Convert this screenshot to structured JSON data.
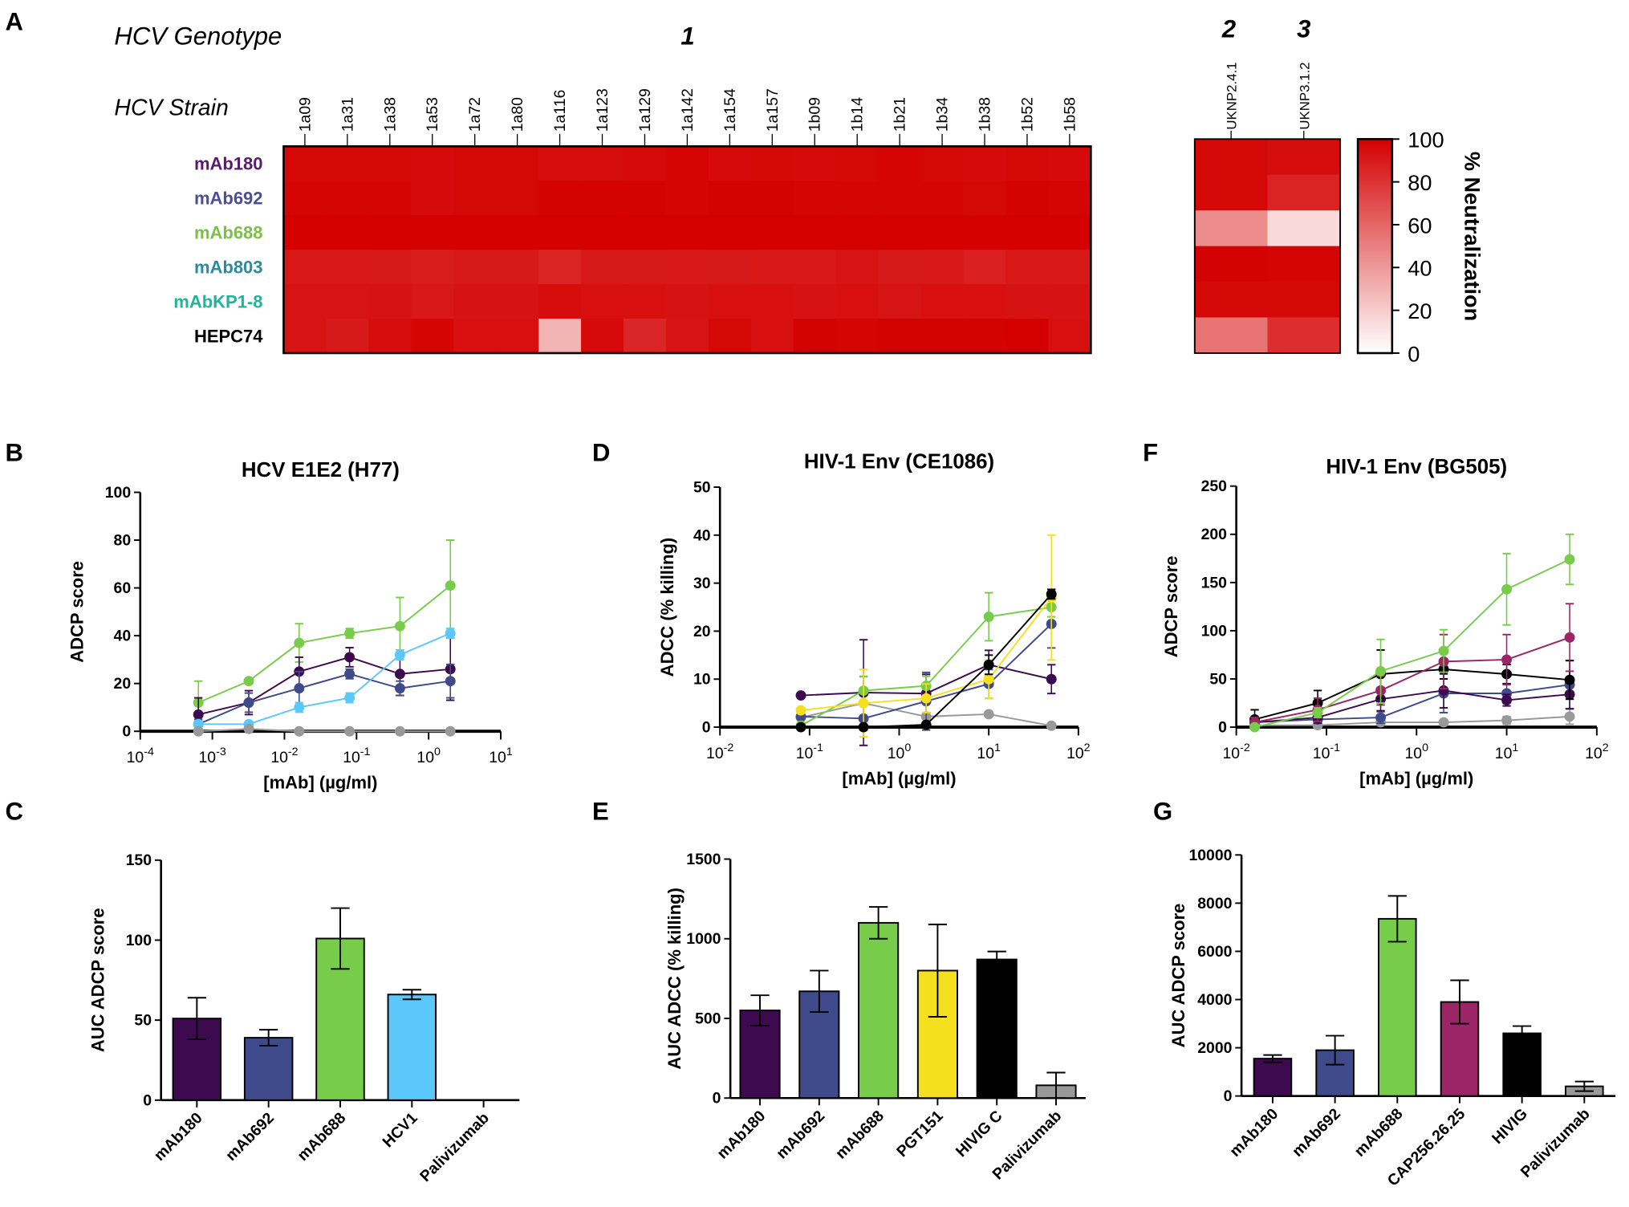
{
  "panel_letters": [
    "A",
    "B",
    "C",
    "D",
    "E",
    "F",
    "G"
  ],
  "chart_data": [
    {
      "panel": "A",
      "type": "heatmap",
      "row_header": "HCV Genotype",
      "col_header": "HCV Strain",
      "genotype_labels": [
        "1",
        "2",
        "3"
      ],
      "rows": [
        "mAb180",
        "mAb692",
        "mAb688",
        "mAb803",
        "mAbKP1-8",
        "HEPC74"
      ],
      "row_colors": [
        "#5b1a6e",
        "#4a4f95",
        "#7cc04a",
        "#2c8aa0",
        "#1fb59a",
        "#000000"
      ],
      "columns_genotype1": [
        "1a09",
        "1a31",
        "1a38",
        "1a53",
        "1a72",
        "1a80",
        "1a116",
        "1a123",
        "1a129",
        "1a142",
        "1a154",
        "1a157",
        "1b09",
        "1b14",
        "1b21",
        "1b34",
        "1b38",
        "1b52",
        "1b58"
      ],
      "columns_genotype23": [
        "UKNP2.4.1",
        "UKNP3.1.2"
      ],
      "values_genotype1": [
        [
          97,
          97,
          97,
          96,
          97,
          97,
          95,
          95,
          96,
          98,
          96,
          97,
          96,
          97,
          98,
          97,
          96,
          97,
          96
        ],
        [
          98,
          98,
          98,
          96,
          97,
          97,
          99,
          99,
          99,
          98,
          99,
          99,
          98,
          98,
          98,
          98,
          97,
          99,
          98
        ],
        [
          100,
          100,
          100,
          100,
          100,
          100,
          100,
          100,
          100,
          100,
          100,
          100,
          100,
          100,
          100,
          100,
          100,
          100,
          100
        ],
        [
          91,
          91,
          90,
          89,
          90,
          90,
          86,
          90,
          90,
          91,
          90,
          91,
          91,
          92,
          90,
          91,
          88,
          91,
          91
        ],
        [
          92,
          92,
          93,
          91,
          93,
          93,
          95,
          94,
          94,
          93,
          94,
          94,
          93,
          94,
          92,
          94,
          94,
          93,
          93
        ],
        [
          92,
          90,
          95,
          98,
          94,
          94,
          30,
          96,
          85,
          92,
          97,
          94,
          99,
          98,
          99,
          99,
          99,
          100,
          94
        ]
      ],
      "values_genotype23": [
        [
          97,
          95
        ],
        [
          97,
          86
        ],
        [
          45,
          15
        ],
        [
          99,
          98
        ],
        [
          97,
          97
        ],
        [
          55,
          82
        ]
      ],
      "colorbar": {
        "label": "% Neutralization",
        "ticks": [
          0,
          20,
          40,
          60,
          80,
          100
        ],
        "min_color": "#ffffff",
        "max_color": "#d40000"
      }
    },
    {
      "panel": "B",
      "type": "line",
      "title": "HCV E1E2 (H77)",
      "xlabel": "[mAb] (µg/ml)",
      "ylabel": "ADCP score",
      "xscale": "log",
      "xlim": [
        0.0001,
        10
      ],
      "ylim": [
        0,
        100
      ],
      "xticks": [
        "10-4",
        "10-3",
        "10-2",
        "10-1",
        "100",
        "101"
      ],
      "yticks": [
        0,
        20,
        40,
        60,
        80,
        100
      ],
      "x": [
        0.00064,
        0.0032,
        0.016,
        0.08,
        0.4,
        2
      ],
      "series": [
        {
          "color": "#77cc4a",
          "values": [
            12,
            21,
            37,
            41,
            44,
            61
          ],
          "err": [
            9,
            1,
            8,
            2,
            12,
            19
          ]
        },
        {
          "color": "#3d0a4f",
          "values": [
            7,
            12,
            25,
            31,
            24,
            26
          ],
          "err": [
            7,
            5,
            6,
            4,
            9,
            13
          ]
        },
        {
          "color": "#3f4a8a",
          "values": [
            3,
            12,
            18,
            24,
            18,
            21
          ],
          "err": [
            2,
            4,
            7,
            2,
            3,
            7
          ]
        },
        {
          "color": "#5ac8fa",
          "values": [
            3,
            3,
            10,
            14,
            32,
            41
          ],
          "err": [
            1,
            1,
            2,
            2,
            2,
            2
          ]
        },
        {
          "color": "#999999",
          "values": [
            0,
            1,
            0,
            0,
            0,
            0
          ],
          "err": [
            0,
            0,
            0,
            0,
            0,
            0
          ]
        }
      ]
    },
    {
      "panel": "C",
      "type": "bar",
      "ylabel": "AUC ADCP score",
      "ylim": [
        0,
        150
      ],
      "yticks": [
        0,
        50,
        100,
        150
      ],
      "categories": [
        "mAb180",
        "mAb692",
        "mAb688",
        "HCV1",
        "Palivizumab"
      ],
      "values": [
        51,
        39,
        101,
        66,
        0
      ],
      "err": [
        13,
        5,
        19,
        3,
        0
      ],
      "colors": [
        "#3d0a4f",
        "#3f4a8a",
        "#77cc4a",
        "#5ac8fa",
        "#999999"
      ]
    },
    {
      "panel": "D",
      "type": "line",
      "title": "HIV-1 Env (CE1086)",
      "xlabel": "[mAb] (µg/ml)",
      "ylabel": "ADCC (% killing)",
      "xscale": "log",
      "xlim": [
        0.01,
        100
      ],
      "ylim": [
        0,
        50
      ],
      "xticks": [
        "10-2",
        "10-1",
        "100",
        "101",
        "102"
      ],
      "yticks": [
        0,
        10,
        20,
        30,
        40,
        50
      ],
      "x": [
        0.08,
        0.4,
        2,
        10,
        50
      ],
      "series": [
        {
          "color": "#999999",
          "values": [
            2,
            5,
            2.2,
            2.7,
            0.3
          ],
          "err": [
            0,
            5.5,
            0,
            0,
            0
          ]
        },
        {
          "color": "#3d0a4f",
          "values": [
            6.6,
            7.2,
            7,
            13,
            10
          ],
          "err": [
            0,
            11,
            4,
            3,
            3
          ]
        },
        {
          "color": "#3f4a8a",
          "values": [
            2.2,
            1.8,
            5.4,
            9,
            21.5
          ],
          "err": [
            0,
            0,
            6,
            3,
            5
          ]
        },
        {
          "color": "#77cc4a",
          "values": [
            0.3,
            7.6,
            8.6,
            23,
            25
          ],
          "err": [
            0,
            3,
            2,
            5,
            2
          ]
        },
        {
          "color": "#f5e020",
          "values": [
            3.5,
            5,
            6,
            10,
            27
          ],
          "err": [
            0,
            7,
            3,
            4,
            13
          ]
        },
        {
          "color": "#000000",
          "values": [
            0,
            0,
            0.5,
            13,
            27.7
          ],
          "err": [
            0,
            0,
            0,
            2,
            1
          ]
        }
      ]
    },
    {
      "panel": "E",
      "type": "bar",
      "ylabel": "AUC ADCC (% killing)",
      "ylim": [
        0,
        1500
      ],
      "yticks": [
        0,
        500,
        1000,
        1500
      ],
      "categories": [
        "mAb180",
        "mAb692",
        "mAb688",
        "PGT151",
        "HIVIG C",
        "Palivizumab"
      ],
      "values": [
        550,
        670,
        1100,
        800,
        870,
        80
      ],
      "err": [
        95,
        130,
        100,
        290,
        50,
        80
      ],
      "colors": [
        "#3d0a4f",
        "#3f4a8a",
        "#77cc4a",
        "#f5e020",
        "#000000",
        "#999999"
      ]
    },
    {
      "panel": "F",
      "type": "line",
      "title": "HIV-1 Env (BG505)",
      "xlabel": "[mAb] (µg/ml)",
      "ylabel": "ADCP score",
      "xscale": "log",
      "xlim": [
        0.01,
        100
      ],
      "ylim": [
        0,
        250
      ],
      "xticks": [
        "10-2",
        "10-1",
        "100",
        "101",
        "102"
      ],
      "yticks": [
        0,
        50,
        100,
        150,
        200,
        250
      ],
      "x": [
        0.016,
        0.08,
        0.4,
        2,
        10,
        50
      ],
      "series": [
        {
          "color": "#999999",
          "values": [
            2,
            2,
            5,
            5,
            7,
            11
          ],
          "err": [
            0,
            0,
            0,
            0,
            4,
            8
          ]
        },
        {
          "color": "#3f4a8a",
          "values": [
            5,
            8,
            10,
            35,
            35,
            44
          ],
          "err": [
            3,
            3,
            6,
            20,
            10,
            25
          ]
        },
        {
          "color": "#3d0a4f",
          "values": [
            5,
            10,
            29,
            38,
            28,
            34
          ],
          "err": [
            4,
            6,
            12,
            18,
            6,
            15
          ]
        },
        {
          "color": "#000000",
          "values": [
            8,
            25,
            55,
            60,
            55,
            49
          ],
          "err": [
            10,
            13,
            25,
            10,
            10,
            20
          ]
        },
        {
          "color": "#9b2566",
          "values": [
            5,
            18,
            38,
            68,
            70,
            93
          ],
          "err": [
            5,
            12,
            15,
            28,
            26,
            35
          ]
        },
        {
          "color": "#77cc4a",
          "values": [
            0,
            15,
            58,
            79,
            143,
            174
          ],
          "err": [
            0,
            5,
            33,
            22,
            37,
            26
          ]
        }
      ]
    },
    {
      "panel": "G",
      "type": "bar",
      "ylabel": "AUC ADCP score",
      "ylim": [
        0,
        10000
      ],
      "yticks": [
        0,
        2000,
        4000,
        6000,
        8000,
        10000
      ],
      "categories": [
        "mAb180",
        "mAb692",
        "mAb688",
        "CAP256.26.25",
        "HIVIG",
        "Palivizumab"
      ],
      "values": [
        1550,
        1900,
        7350,
        3900,
        2600,
        400
      ],
      "err": [
        150,
        600,
        950,
        900,
        300,
        200
      ],
      "colors": [
        "#3d0a4f",
        "#3f4a8a",
        "#77cc4a",
        "#9b2566",
        "#000000",
        "#999999"
      ]
    }
  ]
}
